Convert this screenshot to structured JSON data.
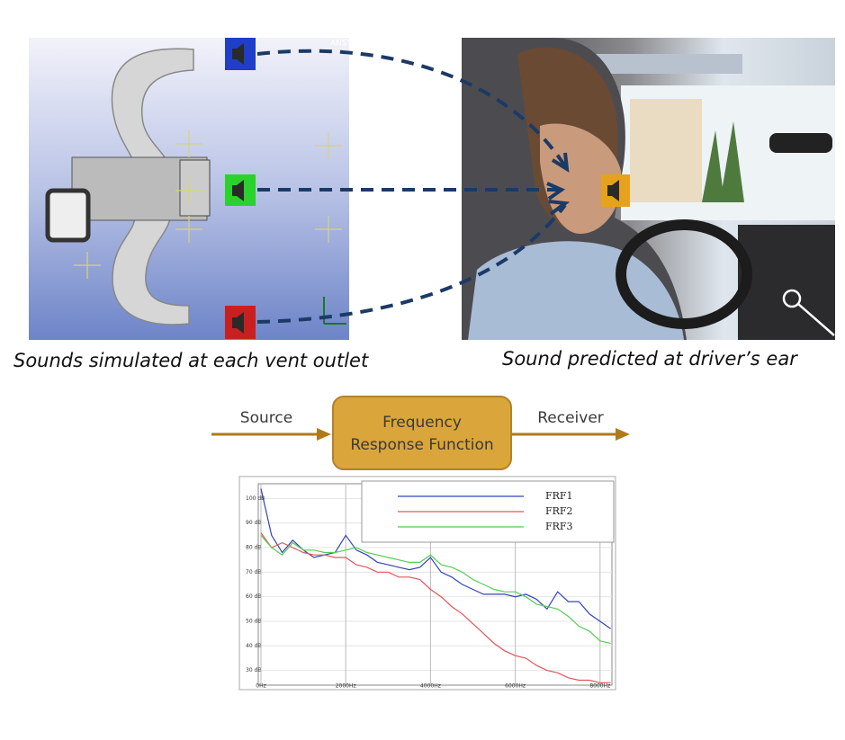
{
  "panels": {
    "logo": "ANSY",
    "simulation_caption": "Sounds simulated at each vent outlet",
    "driver_caption": "Sound predicted at driver’s ear"
  },
  "flow": {
    "source": "Source",
    "box_line1": "Frequency",
    "box_line2": "Response Function",
    "receiver": "Receiver"
  },
  "chart_data": {
    "type": "line",
    "x": [
      0,
      250,
      500,
      750,
      1000,
      1250,
      1500,
      1750,
      2000,
      2250,
      2500,
      2750,
      3000,
      3250,
      3500,
      3750,
      4000,
      4250,
      4500,
      4750,
      5000,
      5250,
      5500,
      5750,
      6000,
      6250,
      6500,
      6750,
      7000,
      7250,
      7500,
      7750,
      8000,
      8250
    ],
    "series": [
      {
        "name": "FRF1",
        "color": "#3344bb",
        "values": [
          104,
          85,
          78,
          83,
          79,
          76,
          77,
          78,
          85,
          79,
          77,
          74,
          73,
          72,
          71,
          72,
          76,
          70,
          68,
          65,
          63,
          61,
          61,
          61,
          60,
          61,
          59,
          55,
          62,
          58,
          58,
          53,
          50,
          47
        ]
      },
      {
        "name": "FRF2",
        "color": "#e0565a",
        "values": [
          86,
          80,
          82,
          80,
          78,
          77,
          77,
          76,
          76,
          73,
          72,
          70,
          70,
          68,
          68,
          67,
          63,
          60,
          56,
          53,
          49,
          45,
          41,
          38,
          36,
          35,
          32,
          30,
          29,
          27,
          26,
          26,
          25,
          25
        ]
      },
      {
        "name": "FRF3",
        "color": "#55cc55",
        "values": [
          85,
          80,
          77,
          82,
          79,
          79,
          78,
          78,
          79,
          80,
          78,
          77,
          76,
          75,
          74,
          74,
          77,
          73,
          72,
          70,
          67,
          65,
          63,
          62,
          62,
          60,
          57,
          56,
          55,
          52,
          48,
          46,
          42,
          41
        ]
      }
    ],
    "xlim": [
      0,
      8280
    ],
    "ylim": [
      24,
      106
    ],
    "xticks": [
      {
        "value": 0,
        "label": "0Hz"
      },
      {
        "value": 2000,
        "label": "2000Hz"
      },
      {
        "value": 4000,
        "label": "4000Hz"
      },
      {
        "value": 6000,
        "label": "6000Hz"
      },
      {
        "value": 8000,
        "label": "8000Hz"
      }
    ],
    "yticks": [
      {
        "value": 30,
        "label": "30 dB"
      },
      {
        "value": 40,
        "label": "40 dB"
      },
      {
        "value": 50,
        "label": "50 dB"
      },
      {
        "value": 60,
        "label": "60 dB"
      },
      {
        "value": 70,
        "label": "70 dB"
      },
      {
        "value": 80,
        "label": "80 dB"
      },
      {
        "value": 90,
        "label": "90 dB"
      },
      {
        "value": 100,
        "label": "100 dB"
      }
    ],
    "grid": true,
    "legend": "upper right"
  }
}
